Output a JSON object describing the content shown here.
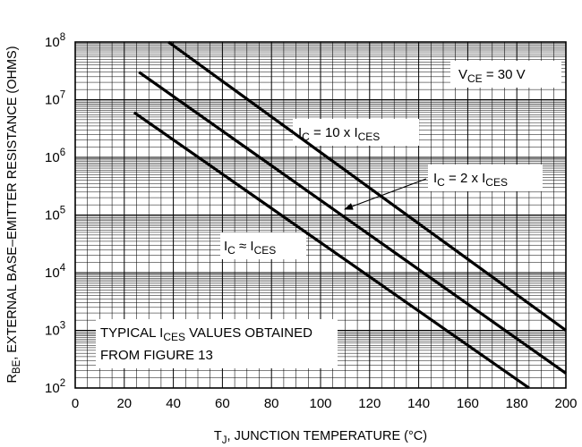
{
  "chart_data": {
    "type": "line",
    "title": "",
    "xlabel": {
      "main": "T",
      "sub": "J",
      "rest": ", JUNCTION TEMPERATURE (°C)"
    },
    "ylabel": {
      "main": "R",
      "sub": "BE",
      "rest": ", EXTERNAL BASE–EMITTER RESISTANCE (OHMS)"
    },
    "xlim": [
      0,
      200
    ],
    "ylim": [
      100,
      100000000
    ],
    "y_scale": "log",
    "grid": true,
    "x_ticks": [
      "0",
      "20",
      "40",
      "60",
      "80",
      "100",
      "120",
      "140",
      "160",
      "180",
      "200"
    ],
    "y_ticks": [
      {
        "base": "10",
        "exp": "2"
      },
      {
        "base": "10",
        "exp": "3"
      },
      {
        "base": "10",
        "exp": "4"
      },
      {
        "base": "10",
        "exp": "5"
      },
      {
        "base": "10",
        "exp": "6"
      },
      {
        "base": "10",
        "exp": "7"
      },
      {
        "base": "10",
        "exp": "8"
      }
    ],
    "series": [
      {
        "x": [
          38,
          200
        ],
        "y": [
          100000000,
          1000
        ]
      },
      {
        "x": [
          26,
          200
        ],
        "y": [
          30000000,
          180
        ]
      },
      {
        "x": [
          24,
          185
        ],
        "y": [
          6000000,
          100
        ]
      }
    ],
    "annotations": {
      "vce": [
        "V",
        "CE",
        " = 30 V"
      ],
      "ic10": [
        "I",
        "C",
        " = 10 x I",
        "CES"
      ],
      "ic2": [
        "I",
        "C",
        " = 2 x I",
        "CES"
      ],
      "ic1": [
        "I",
        "C",
        " ≈ I",
        "CES"
      ],
      "typical_line1": [
        "TYPICAL I",
        "CES",
        " VALUES OBTAINED"
      ],
      "typical_line2": "FROM FIGURE 13"
    }
  }
}
